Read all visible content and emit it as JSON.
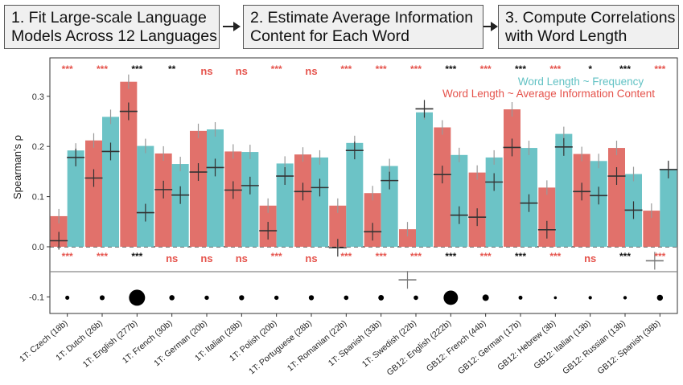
{
  "pipeline": {
    "step1": {
      "line1": "1. Fit Large-scale Language",
      "line2": "Models Across 12 Languages"
    },
    "step2": {
      "line1": "2.  Estimate Average Information",
      "line2": "Content for Each Word"
    },
    "step3": {
      "line1": "3. Compute Correlations",
      "line2": "with Word Length"
    }
  },
  "colors": {
    "info_bar": "#E1716B",
    "freq_bar": "#6CC3C6",
    "freq_legend_text": "#62C2C4",
    "info_legend_text": "#E5534C",
    "sig_red": "#E5534C",
    "sig_black": "#111111",
    "marker": "#333333",
    "errorbar": "#999999"
  },
  "chart_data": {
    "type": "bar",
    "ylabel": "Spearman's ρ",
    "ylim": [
      -0.12,
      0.36
    ],
    "yticks": [
      -0.1,
      0.0,
      0.1,
      0.2,
      0.3
    ],
    "ytick_labels": [
      "-0.1",
      "0.0",
      "0.1",
      "0.2",
      "0.3"
    ],
    "zero_dashed_line": true,
    "legend": {
      "position": "top-right",
      "entries": [
        "Word Length ~ Frequency",
        "Word Length ~ Average Information Content"
      ]
    },
    "categories": [
      "1T: Czech (18b)",
      "1T: Dutch (26b)",
      "1T: English (277b)",
      "1T: French (30b)",
      "1T: German (20b)",
      "1T: Italian (28b)",
      "1T: Polish (20b)",
      "1T: Portuguese (28b)",
      "1T: Romanian (22b)",
      "1T: Spanish (33b)",
      "1T: Swedish (22b)",
      "GB12: English (222b)",
      "GB12: French (44b)",
      "GB12: German (17b)",
      "GB12: Hebrew (3b)",
      "GB12: Italian (13b)",
      "GB12: Russian (13b)",
      "GB12: Spanish (38b)"
    ],
    "series": [
      {
        "name": "Word Length ~ Average Information Content",
        "color_key": "info_bar",
        "values": [
          0.061,
          0.212,
          0.329,
          0.186,
          0.231,
          0.19,
          0.082,
          0.184,
          0.082,
          0.107,
          0.035,
          0.238,
          0.148,
          0.274,
          0.118,
          0.185,
          0.197,
          0.072
        ],
        "markers": [
          0.012,
          0.137,
          0.27,
          0.114,
          0.149,
          0.113,
          0.032,
          0.11,
          -0.002,
          0.03,
          null,
          0.144,
          0.059,
          0.198,
          0.034,
          0.11,
          0.141,
          null
        ]
      },
      {
        "name": "Word Length ~ Frequency",
        "color_key": "freq_bar",
        "values": [
          0.192,
          0.259,
          0.201,
          0.165,
          0.234,
          0.189,
          0.166,
          0.178,
          0.207,
          0.161,
          0.268,
          0.183,
          0.178,
          0.197,
          0.225,
          0.171,
          0.145,
          0.155
        ],
        "markers": [
          0.178,
          0.19,
          0.068,
          0.103,
          0.158,
          0.122,
          0.141,
          0.118,
          0.192,
          0.132,
          0.275,
          0.063,
          0.129,
          0.087,
          0.199,
          0.102,
          0.073,
          0.154
        ]
      }
    ],
    "extra_markers": [
      {
        "category_index": 10,
        "value": -0.066
      },
      {
        "category_index": 17,
        "value": -0.028
      }
    ],
    "significance_top": [
      "***",
      "***",
      "***",
      "**",
      "ns",
      "ns",
      "***",
      "ns",
      "***",
      "***",
      "***",
      "***",
      "***",
      "***",
      "***",
      "*",
      "***",
      "***"
    ],
    "significance_top_color": [
      "sig_red",
      "sig_red",
      "sig_black",
      "sig_black",
      "sig_red",
      "sig_red",
      "sig_red",
      "sig_red",
      "sig_red",
      "sig_red",
      "sig_red",
      "sig_black",
      "sig_red",
      "sig_black",
      "sig_red",
      "sig_black",
      "sig_black",
      "sig_red"
    ],
    "significance_bottom": [
      "***",
      "***",
      "***",
      "ns",
      "ns",
      "ns",
      "***",
      "ns",
      "***",
      "***",
      "***",
      "***",
      "***",
      "***",
      "***",
      "ns",
      "***",
      "***"
    ],
    "significance_bottom_color": [
      "sig_red",
      "sig_red",
      "sig_black",
      "sig_red",
      "sig_red",
      "sig_red",
      "sig_red",
      "sig_red",
      "sig_red",
      "sig_red",
      "sig_red",
      "sig_black",
      "sig_red",
      "sig_black",
      "sig_red",
      "sig_red",
      "sig_black",
      "sig_red"
    ],
    "dataset_size_dots": {
      "level": -0.1,
      "relative_sizes": [
        18,
        26,
        277,
        30,
        20,
        28,
        20,
        28,
        22,
        33,
        22,
        222,
        44,
        17,
        3,
        13,
        13,
        38
      ]
    }
  }
}
